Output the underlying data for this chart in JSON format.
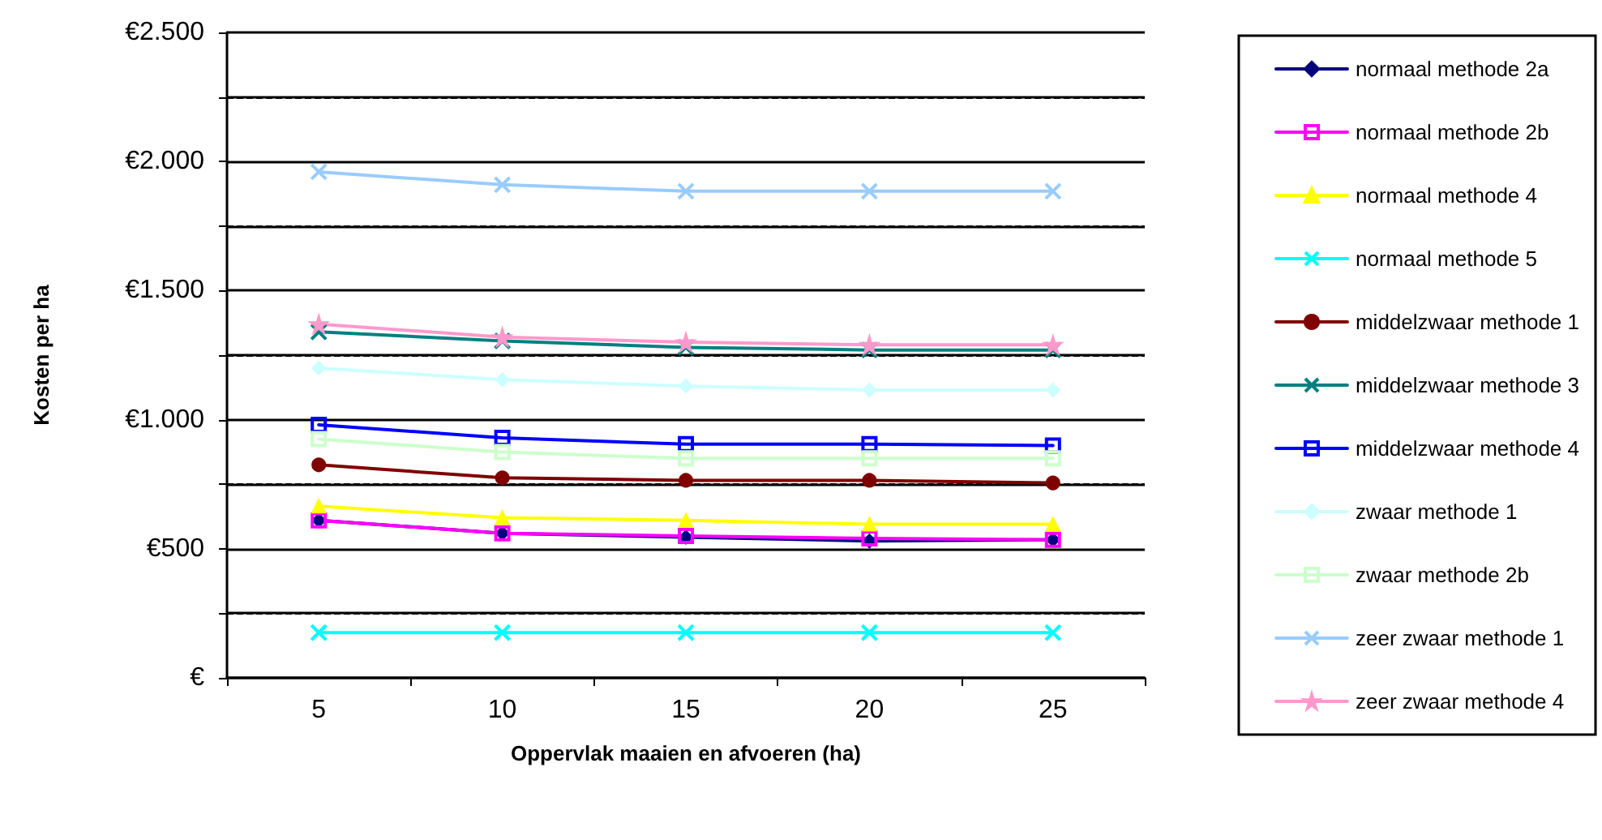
{
  "chart_data": {
    "type": "line",
    "xlabel": "Oppervlak maaien en afvoeren (ha)",
    "ylabel": "Kosten per ha",
    "categories": [
      "5",
      "10",
      "15",
      "20",
      "25"
    ],
    "ylim": [
      0,
      2500
    ],
    "yticks": [
      {
        "value": 0,
        "label": "€"
      },
      {
        "value": 250,
        "label": null
      },
      {
        "value": 500,
        "label": "€500"
      },
      {
        "value": 750,
        "label": null
      },
      {
        "value": 1000,
        "label": "€1.000"
      },
      {
        "value": 1250,
        "label": null
      },
      {
        "value": 1500,
        "label": "€1.500"
      },
      {
        "value": 1750,
        "label": null
      },
      {
        "value": 2000,
        "label": "€2.000"
      },
      {
        "value": 2250,
        "label": null
      },
      {
        "value": 2500,
        "label": "€2.500"
      }
    ],
    "grid": "y",
    "legend": "right",
    "series": [
      {
        "name": "normaal methode 2a",
        "color": "#000080",
        "marker": "diamond",
        "values": [
          610,
          560,
          545,
          530,
          535
        ]
      },
      {
        "name": "normaal methode 2b",
        "color": "#ff00ff",
        "marker": "square",
        "values": [
          610,
          560,
          550,
          540,
          535
        ]
      },
      {
        "name": "normaal methode 4",
        "color": "#ffff00",
        "marker": "triangle",
        "values": [
          665,
          620,
          610,
          595,
          595
        ]
      },
      {
        "name": "normaal methode 5",
        "color": "#00ffff",
        "marker": "cross",
        "values": [
          175,
          175,
          175,
          175,
          175
        ]
      },
      {
        "name": "middelzwaar methode 1",
        "color": "#800000",
        "marker": "circle",
        "values": [
          825,
          775,
          765,
          765,
          755
        ]
      },
      {
        "name": "middelzwaar methode 3",
        "color": "#008080",
        "marker": "cross",
        "values": [
          1340,
          1305,
          1280,
          1270,
          1270
        ]
      },
      {
        "name": "middelzwaar methode 4",
        "color": "#0000ff",
        "marker": "square",
        "values": [
          980,
          930,
          905,
          905,
          900
        ]
      },
      {
        "name": "zwaar methode 1",
        "color": "#ccffff",
        "marker": "diamond",
        "values": [
          1200,
          1155,
          1130,
          1115,
          1115
        ]
      },
      {
        "name": "zwaar methode 2b",
        "color": "#ccffcc",
        "marker": "square",
        "values": [
          925,
          875,
          850,
          850,
          850
        ]
      },
      {
        "name": "zeer zwaar methode 1",
        "color": "#99ccff",
        "marker": "cross",
        "values": [
          1960,
          1910,
          1885,
          1885,
          1885
        ]
      },
      {
        "name": "zeer zwaar methode 4",
        "color": "#ff99cc",
        "marker": "star",
        "values": [
          1370,
          1320,
          1300,
          1290,
          1290
        ]
      }
    ]
  }
}
